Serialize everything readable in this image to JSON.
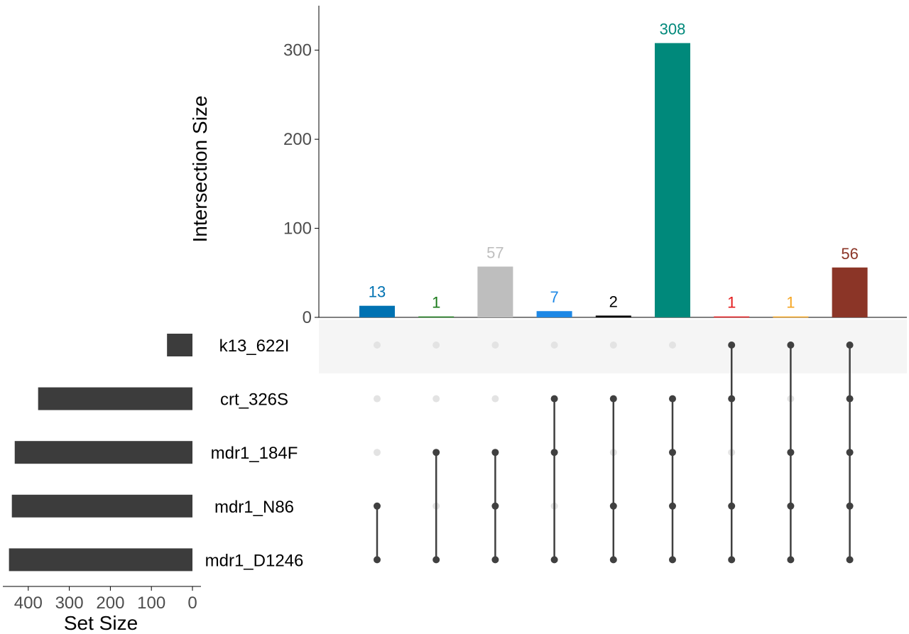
{
  "chart_data": {
    "type": "upset",
    "intersection_axis": {
      "label": "Intersection Size",
      "ylim": [
        0,
        350
      ],
      "ticks": [
        0,
        100,
        200,
        300
      ]
    },
    "set_size_axis": {
      "label": "Set Size",
      "xlim": [
        460,
        0
      ],
      "ticks": [
        400,
        300,
        200,
        100,
        0
      ]
    },
    "sets": [
      {
        "name": "k13_622I",
        "size": 62
      },
      {
        "name": "crt_326S",
        "size": 376
      },
      {
        "name": "mdr1_184F",
        "size": 433
      },
      {
        "name": "mdr1_N86",
        "size": 440
      },
      {
        "name": "mdr1_D1246",
        "size": 447
      }
    ],
    "intersections": [
      {
        "size": 13,
        "color": "#0072B2",
        "members": [
          "mdr1_N86",
          "mdr1_D1246"
        ]
      },
      {
        "size": 1,
        "color": "#1A7A1A",
        "members": [
          "mdr1_184F",
          "mdr1_D1246"
        ]
      },
      {
        "size": 57,
        "color": "#BEBEBE",
        "members": [
          "mdr1_184F",
          "mdr1_N86",
          "mdr1_D1246"
        ]
      },
      {
        "size": 7,
        "color": "#1E88E5",
        "members": [
          "crt_326S",
          "mdr1_184F",
          "mdr1_D1246"
        ]
      },
      {
        "size": 2,
        "color": "#000000",
        "members": [
          "crt_326S",
          "mdr1_N86",
          "mdr1_D1246"
        ]
      },
      {
        "size": 308,
        "color": "#00897B",
        "members": [
          "crt_326S",
          "mdr1_184F",
          "mdr1_N86",
          "mdr1_D1246"
        ]
      },
      {
        "size": 1,
        "color": "#E41A1C",
        "members": [
          "k13_622I",
          "crt_326S",
          "mdr1_N86",
          "mdr1_D1246"
        ]
      },
      {
        "size": 1,
        "color": "#F5A623",
        "members": [
          "k13_622I",
          "mdr1_184F",
          "mdr1_N86",
          "mdr1_D1246"
        ]
      },
      {
        "size": 56,
        "color": "#8B3527",
        "members": [
          "k13_622I",
          "crt_326S",
          "mdr1_184F",
          "mdr1_N86",
          "mdr1_D1246"
        ]
      }
    ],
    "colors": {
      "dot_active": "#404040",
      "dot_inactive": "#E3E3E3",
      "set_bar": "#3C3C3C",
      "stripe": "#F5F5F5",
      "axis_text": "#4D4D4D"
    }
  }
}
